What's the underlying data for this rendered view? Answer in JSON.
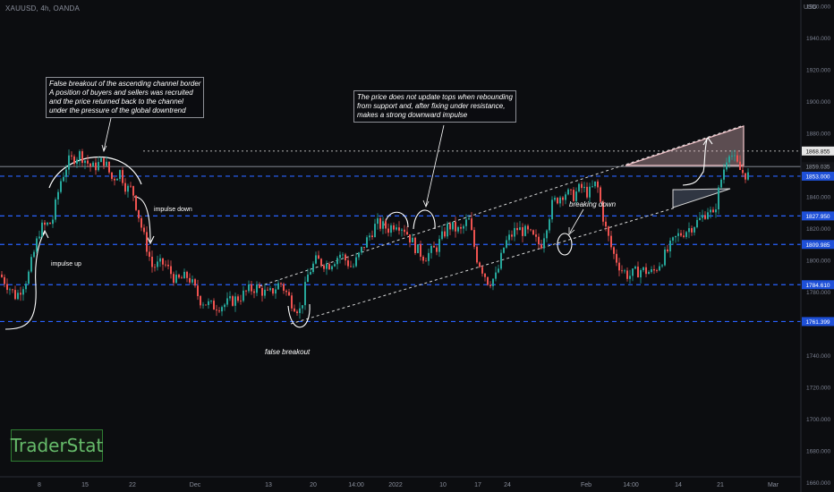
{
  "symbol": "XAUUSD, 4h, OANDA",
  "currency": "USD",
  "brand": "TraderStat",
  "colors": {
    "up": "#26a69a",
    "down": "#ef5350",
    "level_line": "#2962ff",
    "channel": "#d7d7d7",
    "annotation": "#ffffff",
    "triangle_fill": "#f4c7cc",
    "flag_fill": "#9bb3d6"
  },
  "annotations": {
    "false_breakout_channel": "False breakout of the ascending channel border\nA position of buyers and sellers was recruited\nand the price returned back to the channel\nunder the pressure of the global downtrend",
    "no_update_tops": "The price does not update tops when rebounding\nfrom support and, after fixing under resistance,\nmakes a strong downward impulse",
    "impulse_down": "impulse down",
    "impulse_up": "impulse up",
    "false_breakout": "false breakout",
    "breaking_down": "breaking down"
  },
  "chart_data": {
    "type": "candlestick",
    "title": "",
    "x_tick_labels": [
      "8",
      "15",
      "22",
      "Dec",
      "13",
      "20",
      "14:00",
      "2022",
      "10",
      "17",
      "24",
      "Feb",
      "14:00",
      "14",
      "21",
      "Mar"
    ],
    "y_ticks": [
      1960,
      1940,
      1920,
      1900,
      1880,
      1860,
      1840,
      1820,
      1800,
      1780,
      1760,
      1740,
      1720,
      1700,
      1680,
      1660
    ],
    "y_tick_labels": [
      "1960.000",
      "1940.000",
      "1920.000",
      "1900.000",
      "1880.000",
      "1860.000",
      "1840.000",
      "1820.000",
      "1800.000",
      "1780.000",
      "1760.000",
      "1740.000",
      "1720.000",
      "1700.000",
      "1680.000",
      "1660.000"
    ],
    "ylim": [
      1654,
      1964
    ],
    "grid": false,
    "levels": [
      {
        "price": 1868.855,
        "label": "1868.855",
        "style": "dotted",
        "color": "#9e9e9e",
        "tag_bg": "#e6e6e6",
        "tag_fg": "#111111"
      },
      {
        "price": 1859.035,
        "label": "1859.035",
        "style": "solid",
        "color": "#6b6f78",
        "tag_bg": "#141519",
        "tag_fg": "#9aa0ab"
      },
      {
        "price": 1853.0,
        "label": "1853.000",
        "style": "dashed",
        "color": "#2962ff",
        "tag_bg": "#1e50d8",
        "tag_fg": "#ffffff"
      },
      {
        "price": 1827.95,
        "label": "1827.950",
        "style": "dashed",
        "color": "#2962ff",
        "tag_bg": "#1e50d8",
        "tag_fg": "#ffffff"
      },
      {
        "price": 1809.985,
        "label": "1809.985",
        "style": "dashed",
        "color": "#2962ff",
        "tag_bg": "#1e50d8",
        "tag_fg": "#ffffff"
      },
      {
        "price": 1784.61,
        "label": "1784.610",
        "style": "dashed",
        "color": "#2962ff",
        "tag_bg": "#1e50d8",
        "tag_fg": "#ffffff"
      },
      {
        "price": 1761.399,
        "label": "1761.399",
        "style": "dashed",
        "color": "#2962ff",
        "tag_bg": "#1e50d8",
        "tag_fg": "#ffffff"
      }
    ],
    "price_path": [
      [
        0.0,
        1791
      ],
      [
        0.02,
        1777
      ],
      [
        0.035,
        1790
      ],
      [
        0.05,
        1820
      ],
      [
        0.065,
        1824
      ],
      [
        0.075,
        1849
      ],
      [
        0.085,
        1862
      ],
      [
        0.1,
        1867
      ],
      [
        0.115,
        1858
      ],
      [
        0.13,
        1863
      ],
      [
        0.14,
        1851
      ],
      [
        0.15,
        1856
      ],
      [
        0.158,
        1845
      ],
      [
        0.165,
        1845
      ],
      [
        0.178,
        1818
      ],
      [
        0.19,
        1796
      ],
      [
        0.205,
        1798
      ],
      [
        0.22,
        1787
      ],
      [
        0.235,
        1790
      ],
      [
        0.25,
        1775
      ],
      [
        0.265,
        1771
      ],
      [
        0.28,
        1772
      ],
      [
        0.3,
        1777
      ],
      [
        0.31,
        1781
      ],
      [
        0.32,
        1783
      ],
      [
        0.335,
        1778
      ],
      [
        0.35,
        1786
      ],
      [
        0.365,
        1773
      ],
      [
        0.375,
        1768
      ],
      [
        0.385,
        1792
      ],
      [
        0.395,
        1800
      ],
      [
        0.41,
        1797
      ],
      [
        0.425,
        1804
      ],
      [
        0.44,
        1795
      ],
      [
        0.455,
        1810
      ],
      [
        0.47,
        1823
      ],
      [
        0.485,
        1820
      ],
      [
        0.495,
        1824
      ],
      [
        0.505,
        1820
      ],
      [
        0.52,
        1807
      ],
      [
        0.53,
        1802
      ],
      [
        0.545,
        1808
      ],
      [
        0.56,
        1822
      ],
      [
        0.575,
        1818
      ],
      [
        0.585,
        1826
      ],
      [
        0.595,
        1802
      ],
      [
        0.61,
        1786
      ],
      [
        0.62,
        1790
      ],
      [
        0.63,
        1810
      ],
      [
        0.645,
        1820
      ],
      [
        0.66,
        1817
      ],
      [
        0.675,
        1809
      ],
      [
        0.69,
        1836
      ],
      [
        0.705,
        1843
      ],
      [
        0.715,
        1840
      ],
      [
        0.725,
        1846
      ],
      [
        0.735,
        1842
      ],
      [
        0.745,
        1849
      ],
      [
        0.755,
        1822
      ],
      [
        0.765,
        1805
      ],
      [
        0.775,
        1795
      ],
      [
        0.785,
        1790
      ],
      [
        0.8,
        1794
      ],
      [
        0.815,
        1792
      ],
      [
        0.83,
        1803
      ],
      [
        0.845,
        1815
      ],
      [
        0.86,
        1820
      ],
      [
        0.875,
        1826
      ],
      [
        0.885,
        1833
      ],
      [
        0.89,
        1826
      ],
      [
        0.9,
        1850
      ],
      [
        0.91,
        1870
      ],
      [
        0.918,
        1862
      ],
      [
        0.925,
        1856
      ],
      [
        0.935,
        1853
      ]
    ]
  }
}
